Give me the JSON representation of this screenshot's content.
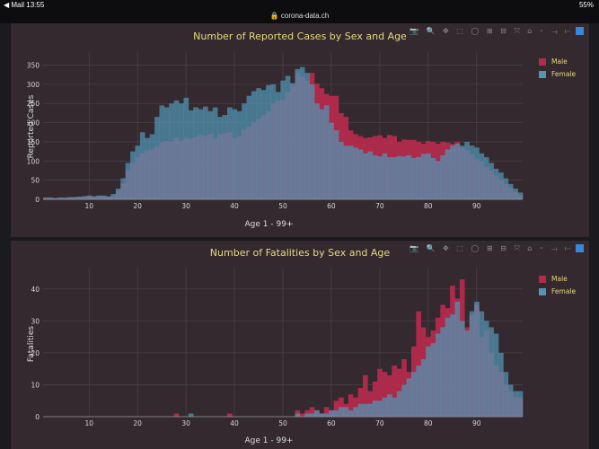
{
  "status": {
    "left": "◀ Mail  13:55",
    "right": "55%"
  },
  "url": "🔒 corona-data.ch",
  "modebar_icons": "📷 🔍 ✥ ⬚ ◯ ⊞ ⊟ ⤧ ⌂ ⁃ ⟞ ⟝",
  "colors": {
    "male": "#b32a4c",
    "female": "#5296b4",
    "title": "#e7d97d"
  },
  "chart_data": [
    {
      "type": "bar",
      "title": "Number of Reported Cases by Sex and Age",
      "xlabel": "Age 1 - 99+",
      "ylabel": "Reported Cases",
      "xlim": [
        1,
        99
      ],
      "ylim": [
        0,
        370
      ],
      "xticks": [
        10,
        20,
        30,
        40,
        50,
        60,
        70,
        80,
        90
      ],
      "yticks": [
        0,
        50,
        100,
        150,
        200,
        250,
        300,
        350
      ],
      "x": [
        1,
        2,
        3,
        4,
        5,
        6,
        7,
        8,
        9,
        10,
        11,
        12,
        13,
        14,
        15,
        16,
        17,
        18,
        19,
        20,
        21,
        22,
        23,
        24,
        25,
        26,
        27,
        28,
        29,
        30,
        31,
        32,
        33,
        34,
        35,
        36,
        37,
        38,
        39,
        40,
        41,
        42,
        43,
        44,
        45,
        46,
        47,
        48,
        49,
        50,
        51,
        52,
        53,
        54,
        55,
        56,
        57,
        58,
        59,
        60,
        61,
        62,
        63,
        64,
        65,
        66,
        67,
        68,
        69,
        70,
        71,
        72,
        73,
        74,
        75,
        76,
        77,
        78,
        79,
        80,
        81,
        82,
        83,
        84,
        85,
        86,
        87,
        88,
        89,
        90,
        91,
        92,
        93,
        94,
        95,
        96,
        97,
        98,
        99
      ],
      "series": [
        {
          "name": "Male",
          "values": [
            5,
            3,
            4,
            3,
            5,
            4,
            6,
            6,
            8,
            9,
            7,
            9,
            9,
            7,
            10,
            22,
            40,
            75,
            95,
            110,
            120,
            128,
            130,
            138,
            148,
            152,
            150,
            160,
            152,
            160,
            158,
            162,
            168,
            165,
            170,
            160,
            170,
            172,
            175,
            160,
            165,
            182,
            190,
            200,
            210,
            220,
            230,
            250,
            258,
            260,
            280,
            300,
            330,
            320,
            310,
            330,
            302,
            290,
            275,
            270,
            270,
            225,
            215,
            180,
            170,
            165,
            160,
            162,
            165,
            167,
            160,
            168,
            165,
            150,
            156,
            155,
            155,
            150,
            145,
            152,
            150,
            145,
            150,
            148,
            145,
            150,
            135,
            128,
            118,
            105,
            98,
            85,
            75,
            62,
            50,
            40,
            30,
            20,
            12
          ]
        },
        {
          "name": "Female",
          "values": [
            4,
            5,
            3,
            5,
            4,
            6,
            6,
            7,
            8,
            10,
            8,
            10,
            10,
            8,
            14,
            28,
            55,
            95,
            125,
            140,
            175,
            160,
            170,
            215,
            245,
            240,
            250,
            258,
            250,
            265,
            232,
            240,
            235,
            242,
            230,
            240,
            215,
            220,
            240,
            235,
            230,
            250,
            270,
            282,
            290,
            285,
            298,
            300,
            280,
            310,
            322,
            303,
            340,
            345,
            330,
            300,
            250,
            235,
            245,
            200,
            180,
            150,
            140,
            140,
            135,
            130,
            120,
            125,
            115,
            112,
            120,
            110,
            110,
            113,
            112,
            115,
            108,
            110,
            118,
            120,
            108,
            100,
            115,
            130,
            140,
            145,
            140,
            150,
            140,
            135,
            120,
            110,
            95,
            80,
            70,
            55,
            40,
            28,
            18
          ]
        }
      ]
    },
    {
      "type": "bar",
      "title": "Number of Fatalities by Sex and Age",
      "xlabel": "Age 1 - 99+",
      "ylabel": "Fatalities",
      "xlim": [
        1,
        99
      ],
      "ylim": [
        0,
        45
      ],
      "xticks": [
        10,
        20,
        30,
        40,
        50,
        60,
        70,
        80,
        90
      ],
      "yticks": [
        0,
        10,
        20,
        30,
        40
      ],
      "x": [
        1,
        2,
        3,
        4,
        5,
        6,
        7,
        8,
        9,
        10,
        11,
        12,
        13,
        14,
        15,
        16,
        17,
        18,
        19,
        20,
        21,
        22,
        23,
        24,
        25,
        26,
        27,
        28,
        29,
        30,
        31,
        32,
        33,
        34,
        35,
        36,
        37,
        38,
        39,
        40,
        41,
        42,
        43,
        44,
        45,
        46,
        47,
        48,
        49,
        50,
        51,
        52,
        53,
        54,
        55,
        56,
        57,
        58,
        59,
        60,
        61,
        62,
        63,
        64,
        65,
        66,
        67,
        68,
        69,
        70,
        71,
        72,
        73,
        74,
        75,
        76,
        77,
        78,
        79,
        80,
        81,
        82,
        83,
        84,
        85,
        86,
        87,
        88,
        89,
        90,
        91,
        92,
        93,
        94,
        95,
        96,
        97,
        98,
        99
      ],
      "series": [
        {
          "name": "Male",
          "values": [
            0,
            0,
            0,
            0,
            0,
            0,
            0,
            0,
            0,
            0,
            0,
            0,
            0,
            0,
            0,
            0,
            0,
            0,
            0,
            0,
            0,
            0,
            0,
            0,
            0,
            0,
            0,
            1,
            0,
            0,
            0,
            0,
            0,
            0,
            0,
            0,
            0,
            0,
            1,
            0,
            0,
            0,
            0,
            0,
            0,
            0,
            0,
            0,
            0,
            0,
            0,
            0,
            2,
            1,
            2,
            3,
            2,
            1,
            3,
            2,
            5,
            6,
            4,
            7,
            6,
            9,
            13,
            8,
            11,
            15,
            14,
            13,
            16,
            15,
            18,
            14,
            22,
            33,
            28,
            25,
            27,
            31,
            35,
            34,
            41,
            37,
            43,
            28,
            32,
            35,
            25,
            27,
            20,
            16,
            14,
            10,
            8,
            6,
            6
          ]
        },
        {
          "name": "Female",
          "values": [
            0,
            0,
            0,
            0,
            0,
            0,
            0,
            0,
            0,
            0,
            0,
            0,
            0,
            0,
            0,
            0,
            0,
            0,
            0,
            0,
            0,
            0,
            0,
            0,
            0,
            0,
            0,
            0,
            0,
            0,
            1,
            0,
            0,
            0,
            0,
            0,
            0,
            0,
            0,
            0,
            0,
            0,
            0,
            0,
            0,
            0,
            0,
            0,
            0,
            0,
            0,
            0,
            1,
            0,
            1,
            1,
            2,
            1,
            1,
            2,
            2,
            3,
            3,
            2,
            3,
            4,
            4,
            4,
            5,
            5,
            6,
            7,
            6,
            8,
            10,
            12,
            14,
            16,
            18,
            22,
            23,
            26,
            28,
            31,
            32,
            36,
            30,
            27,
            33,
            36,
            33,
            30,
            28,
            26,
            20,
            14,
            10,
            8,
            8
          ]
        }
      ]
    }
  ]
}
